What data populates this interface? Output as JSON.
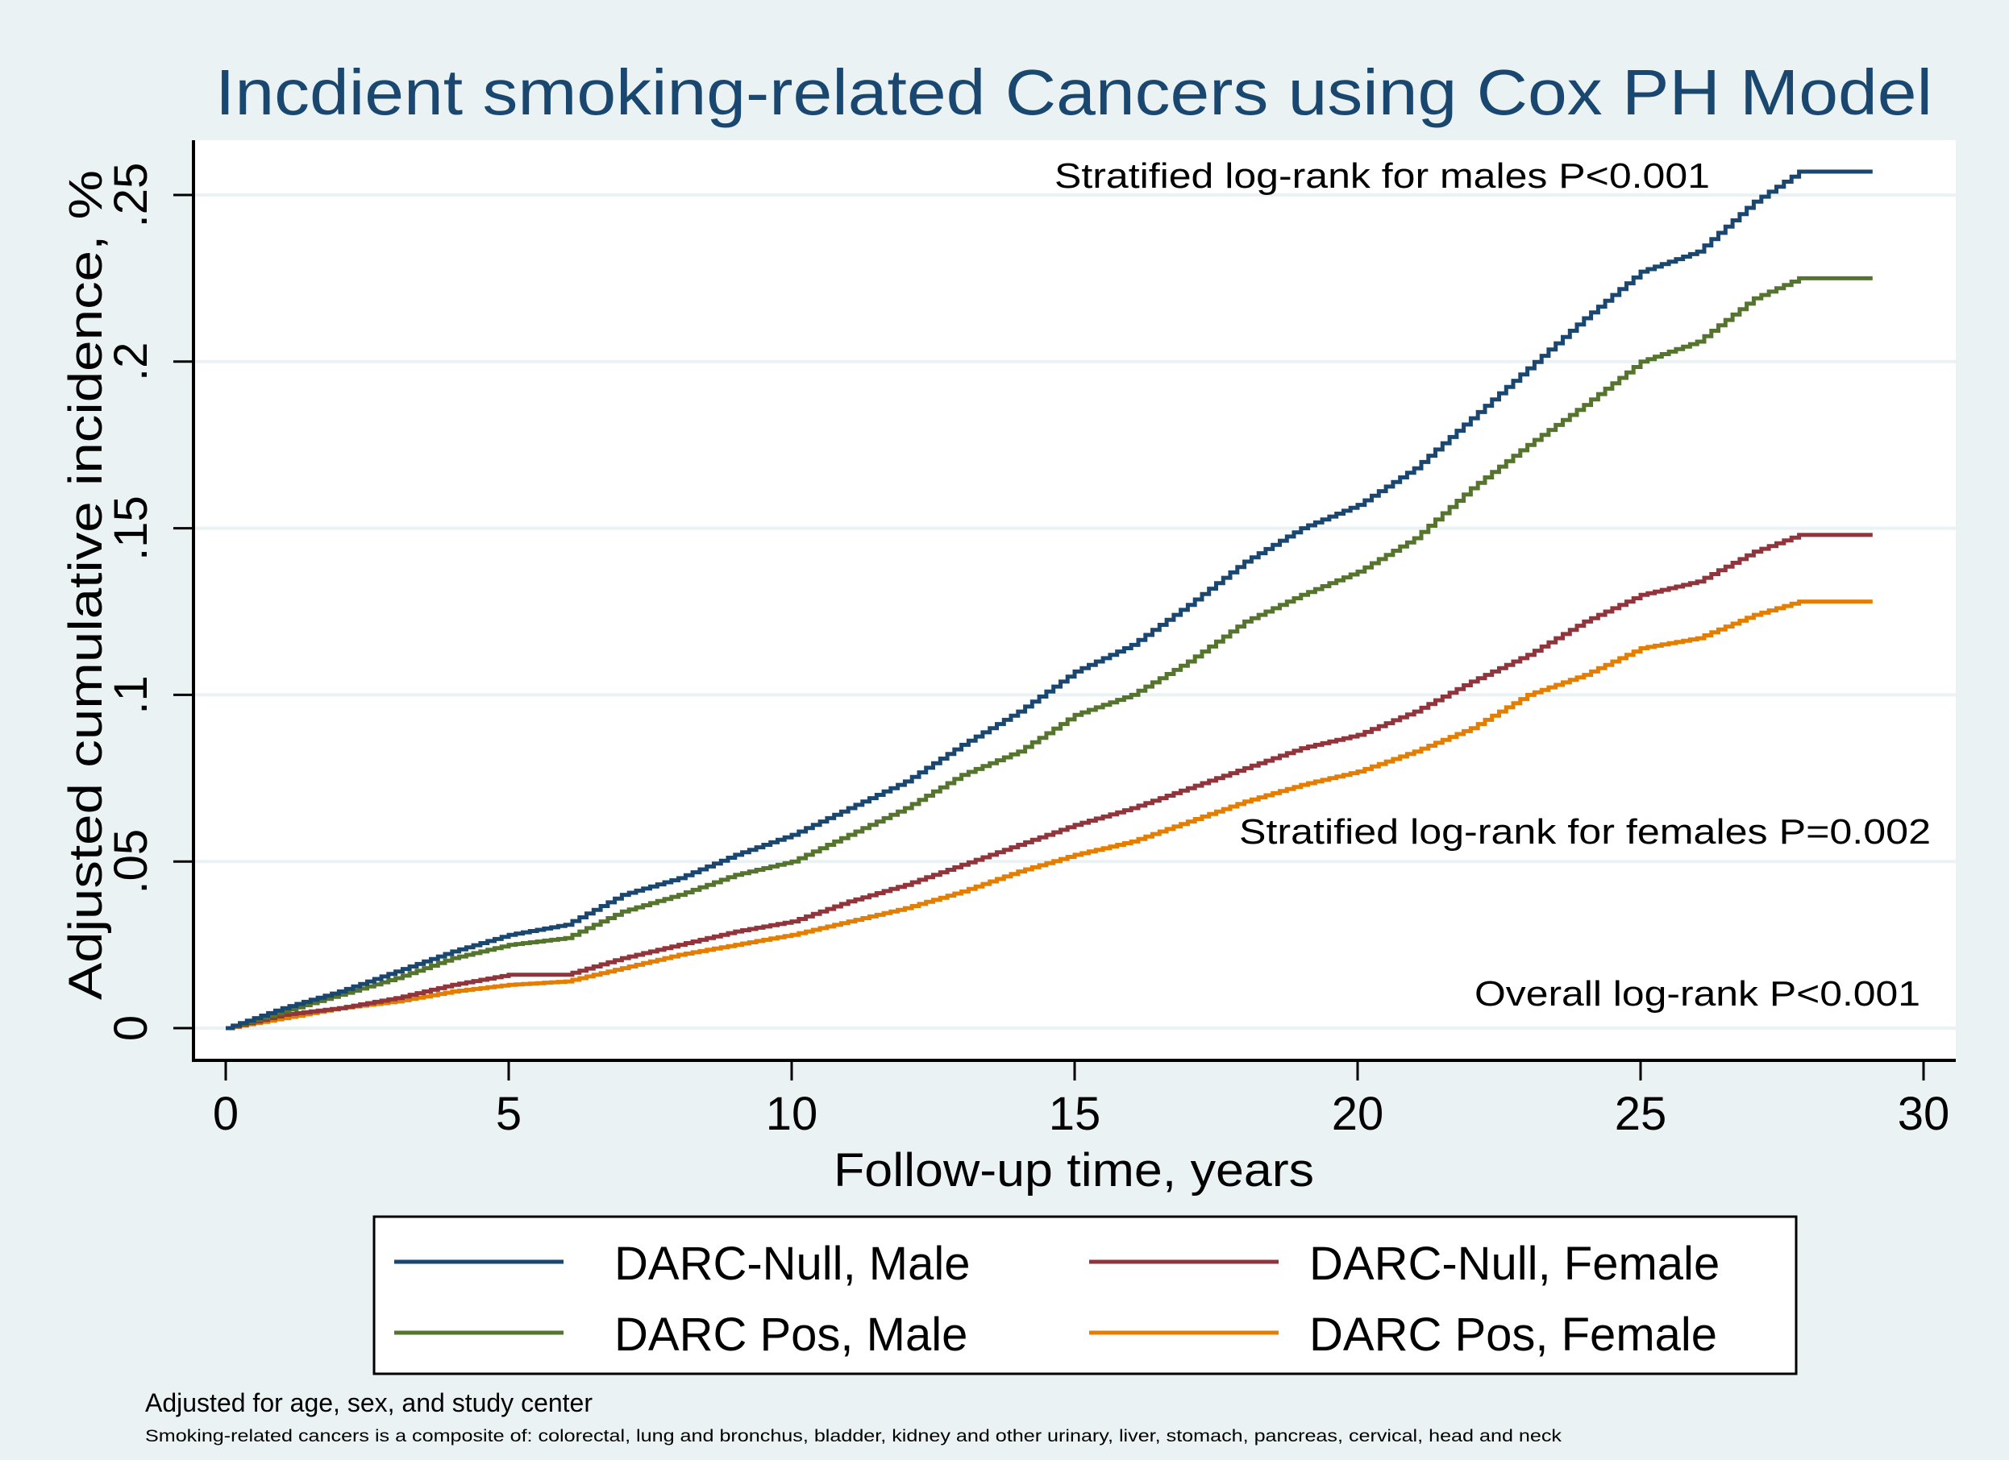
{
  "chart_data": {
    "type": "line",
    "title": "Incdient smoking-related Cancers using Cox PH Model",
    "xlabel": "Follow-up time, years",
    "ylabel": "Adjusted cumulative incidence, %",
    "xlim": [
      0,
      30
    ],
    "ylim": [
      0,
      0.25
    ],
    "x_ticks": [
      0,
      5,
      10,
      15,
      20,
      25,
      30
    ],
    "x_tick_labels": [
      "0",
      "5",
      "10",
      "15",
      "20",
      "25",
      "30"
    ],
    "y_ticks": [
      0,
      0.05,
      0.1,
      0.15,
      0.2,
      0.25
    ],
    "y_tick_labels": [
      "0",
      ".05",
      ".1",
      ".15",
      ".2",
      ".25"
    ],
    "grid": true,
    "legend_placement": "bottom",
    "annotations": [
      "Stratified log-rank for males P<0.001",
      "Stratified log-rank for females P=0.002",
      "Overall log-rank P<0.001"
    ],
    "notes": [
      "Adjusted for age, sex, and study center",
      "Smoking-related cancers is a composite of: colorectal, lung and bronchus, bladder, kidney and other urinary, liver, stomach, pancreas, cervical, head and neck"
    ],
    "x": [
      0,
      1,
      2,
      3,
      4,
      5,
      6,
      7,
      8,
      9,
      10,
      11,
      12,
      13,
      14,
      15,
      16,
      17,
      18,
      19,
      20,
      21,
      22,
      23,
      24,
      25,
      26,
      27,
      27.8,
      29.1
    ],
    "series": [
      {
        "name": "DARC-Null, Male",
        "color": "#1a476f",
        "values": [
          0,
          0.006,
          0.011,
          0.017,
          0.023,
          0.028,
          0.031,
          0.04,
          0.045,
          0.052,
          0.058,
          0.066,
          0.074,
          0.085,
          0.095,
          0.107,
          0.115,
          0.127,
          0.14,
          0.15,
          0.157,
          0.168,
          0.183,
          0.198,
          0.213,
          0.227,
          0.233,
          0.248,
          0.257,
          0.257
        ]
      },
      {
        "name": "DARC-Null, Female",
        "color": "#90353b",
        "values": [
          0,
          0.004,
          0.006,
          0.009,
          0.013,
          0.016,
          0.016,
          0.021,
          0.025,
          0.029,
          0.032,
          0.038,
          0.043,
          0.049,
          0.055,
          0.061,
          0.066,
          0.072,
          0.078,
          0.084,
          0.088,
          0.095,
          0.104,
          0.112,
          0.122,
          0.13,
          0.134,
          0.143,
          0.148,
          0.148
        ]
      },
      {
        "name": "DARC Pos, Male",
        "color": "#55752f",
        "values": [
          0,
          0.005,
          0.01,
          0.015,
          0.021,
          0.025,
          0.027,
          0.035,
          0.04,
          0.046,
          0.05,
          0.058,
          0.066,
          0.076,
          0.083,
          0.094,
          0.1,
          0.11,
          0.122,
          0.13,
          0.137,
          0.147,
          0.162,
          0.175,
          0.187,
          0.2,
          0.206,
          0.219,
          0.225,
          0.225
        ]
      },
      {
        "name": "DARC Pos, Female",
        "color": "#e37e00",
        "values": [
          0,
          0.003,
          0.006,
          0.008,
          0.011,
          0.013,
          0.014,
          0.018,
          0.022,
          0.025,
          0.028,
          0.032,
          0.036,
          0.041,
          0.047,
          0.052,
          0.056,
          0.062,
          0.068,
          0.073,
          0.077,
          0.083,
          0.09,
          0.1,
          0.106,
          0.114,
          0.117,
          0.124,
          0.128,
          0.128
        ]
      }
    ]
  }
}
